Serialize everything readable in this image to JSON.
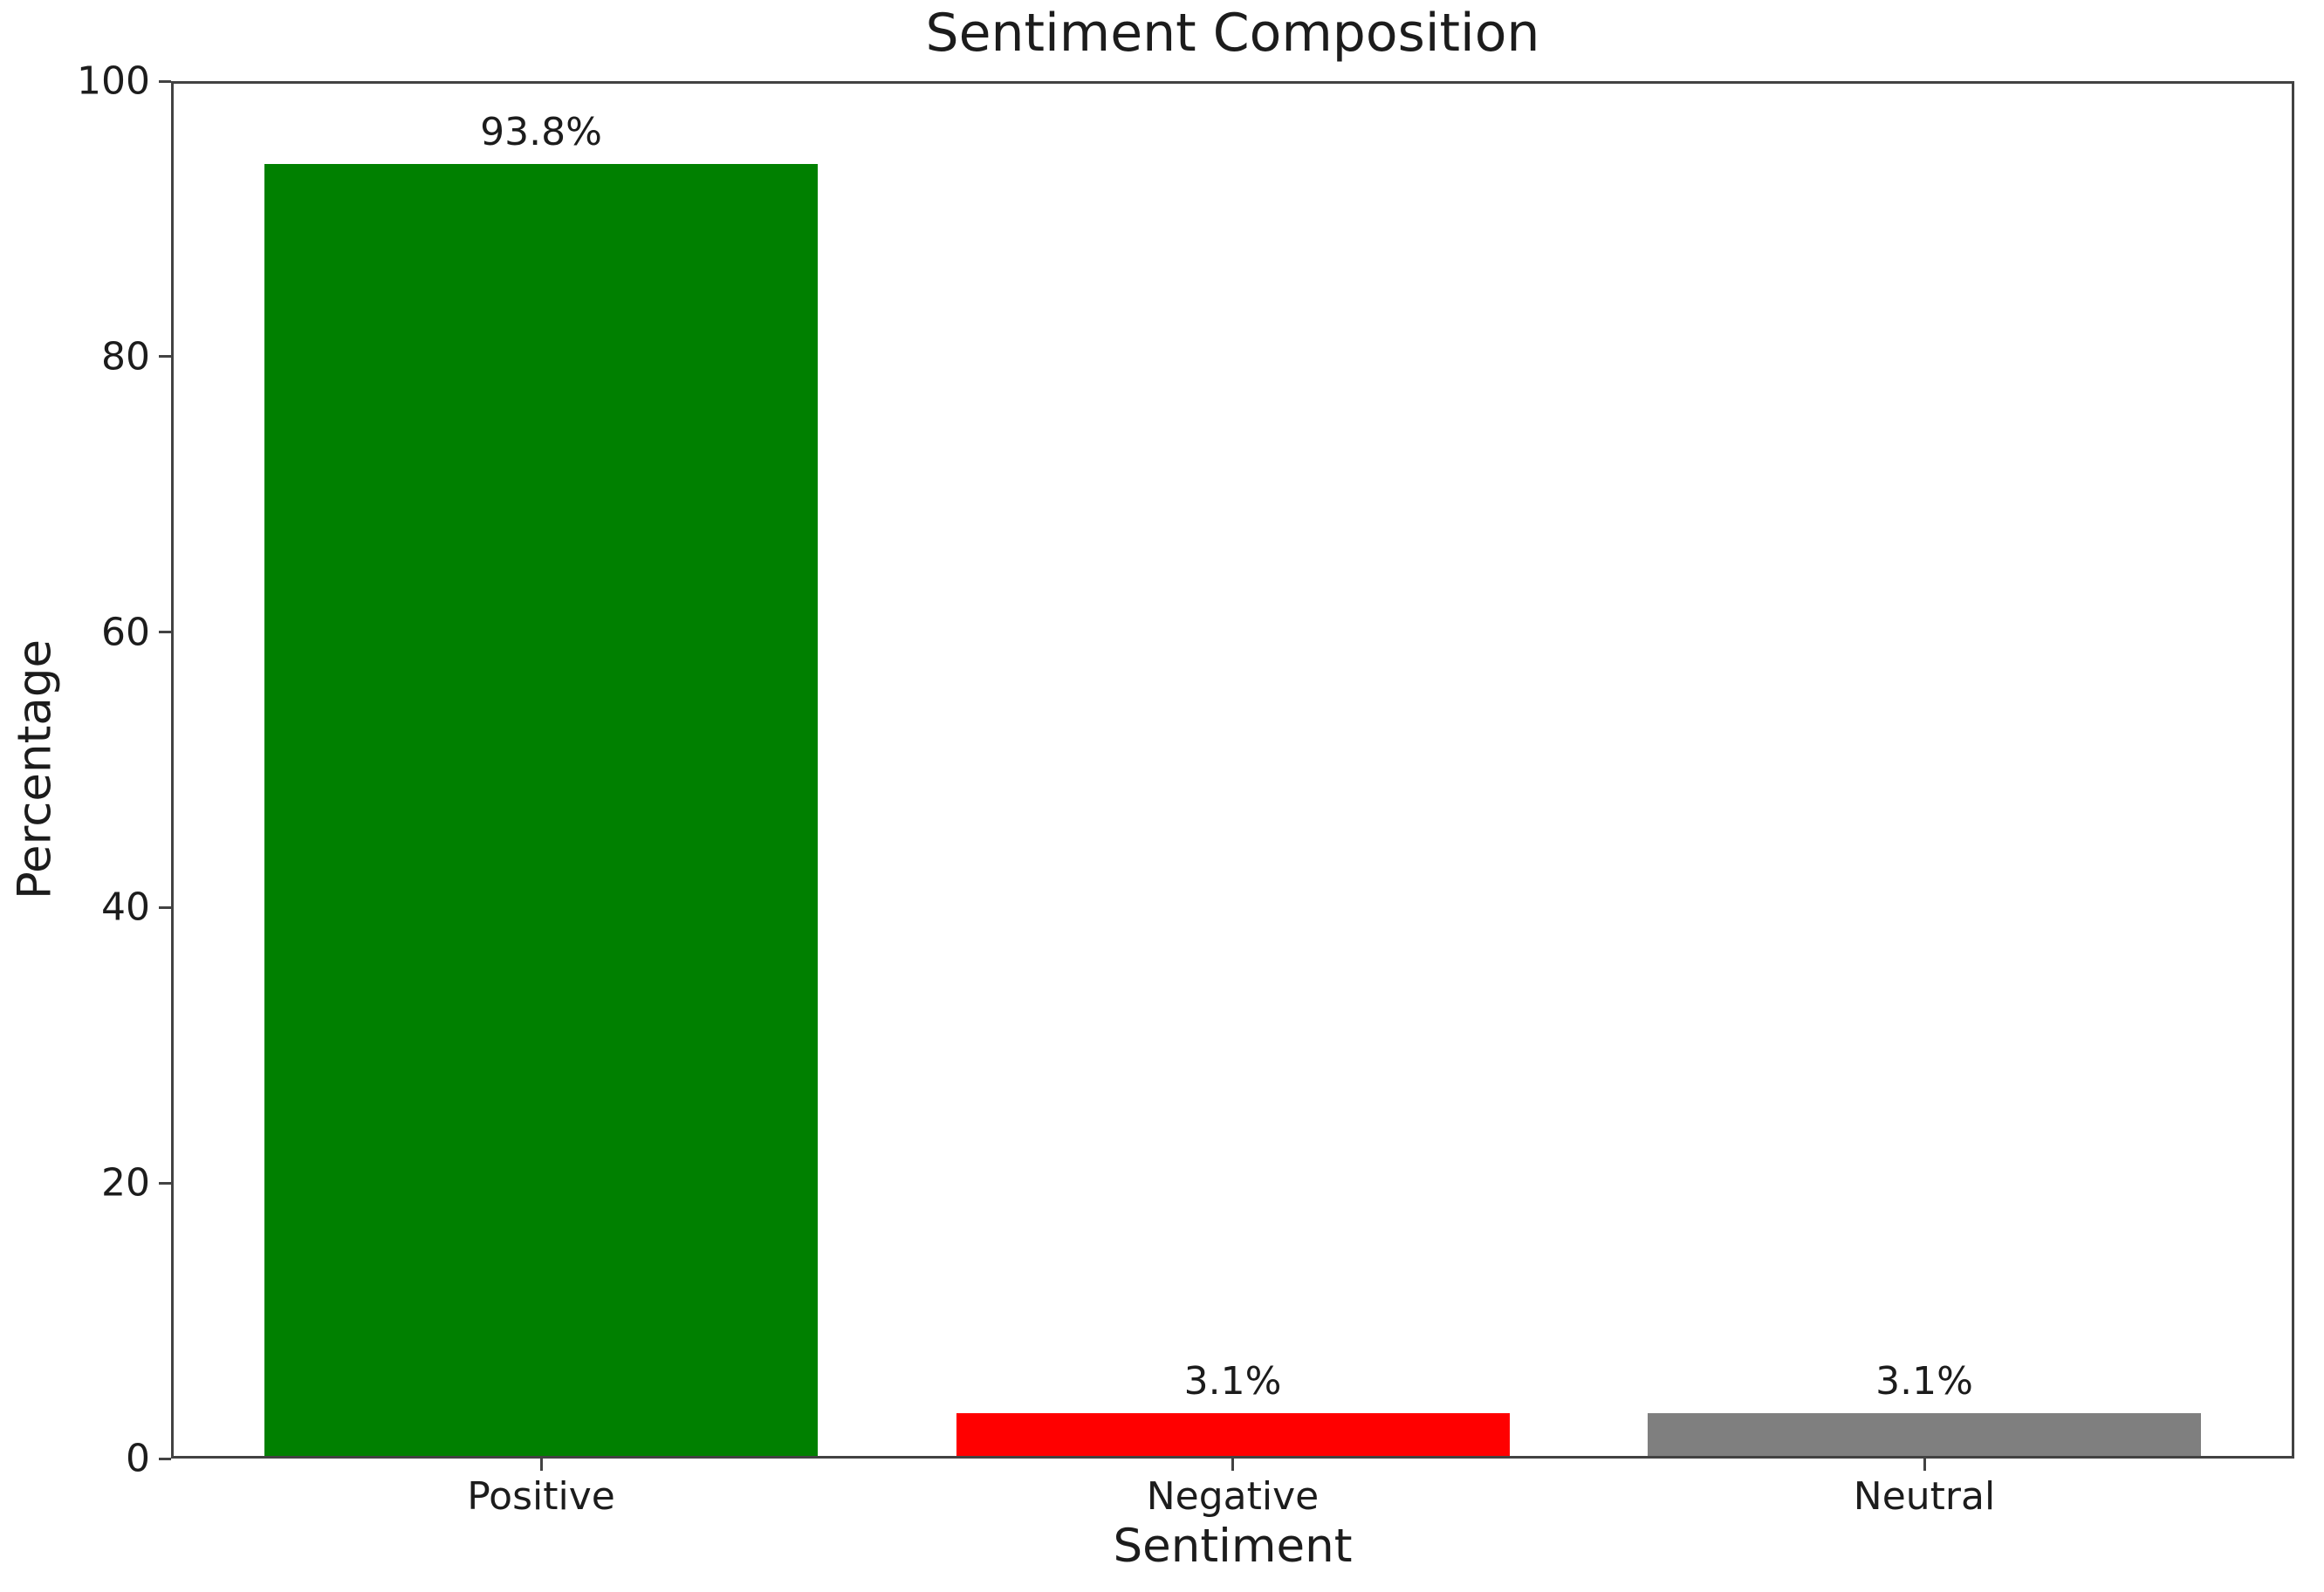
{
  "chart_data": {
    "type": "bar",
    "title": "Sentiment Composition",
    "xlabel": "Sentiment",
    "ylabel": "Percentage",
    "categories": [
      "Positive",
      "Negative",
      "Neutral"
    ],
    "values": [
      93.8,
      3.1,
      3.1
    ],
    "value_labels": [
      "93.8%",
      "3.1%",
      "3.1%"
    ],
    "bar_colors": [
      "#008000",
      "#ff0000",
      "#7f7f7f"
    ],
    "ylim": [
      0,
      100
    ],
    "yticks": [
      0,
      20,
      40,
      60,
      80,
      100
    ],
    "bar_width_fraction": 0.8,
    "grid": false,
    "legend_position": "none",
    "spine_color": "#424242",
    "text_color": "#1c1c1c",
    "background_color": "#ffffff"
  }
}
